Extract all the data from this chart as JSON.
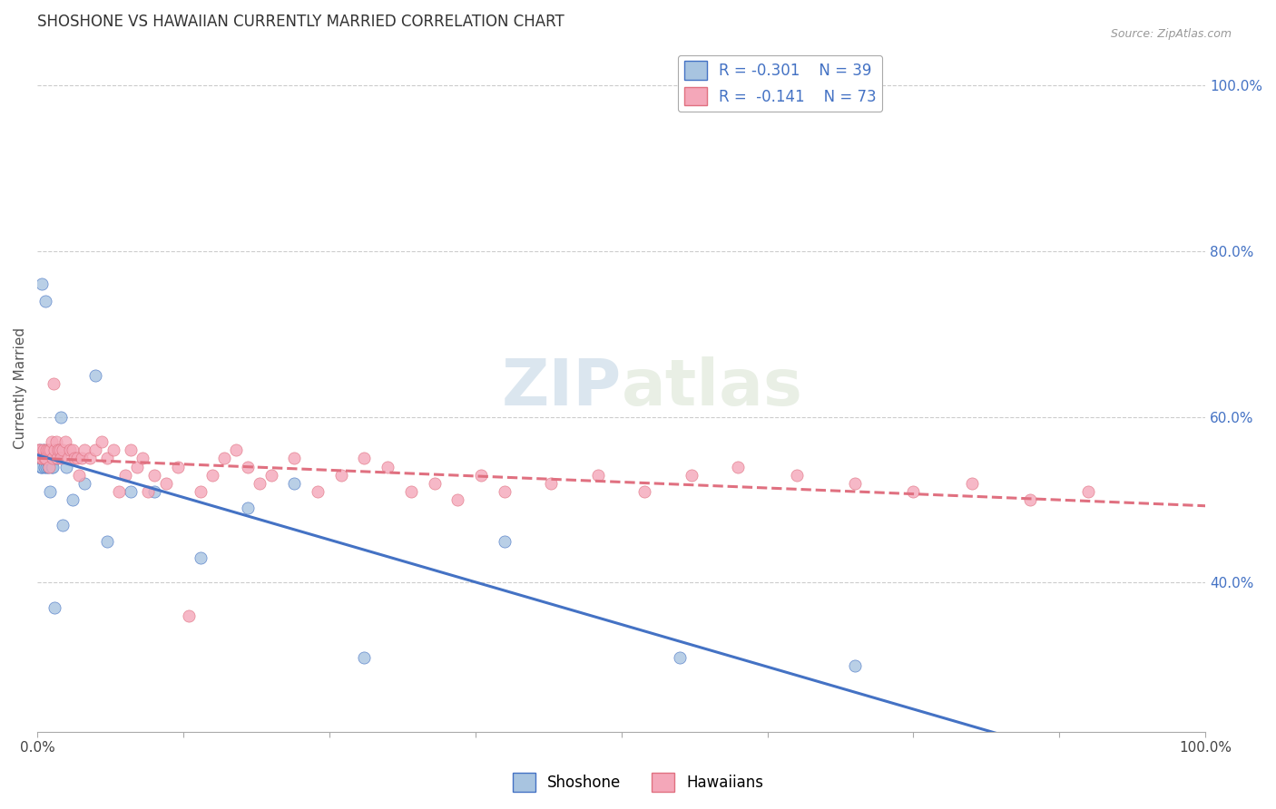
{
  "title": "SHOSHONE VS HAWAIIAN CURRENTLY MARRIED CORRELATION CHART",
  "source": "Source: ZipAtlas.com",
  "ylabel": "Currently Married",
  "legend_label1": "Shoshone",
  "legend_label2": "Hawaiians",
  "r1": -0.301,
  "n1": 39,
  "r2": -0.141,
  "n2": 73,
  "color1": "#a8c4e0",
  "color2": "#f4a7b9",
  "line_color1": "#4472c4",
  "line_color2": "#e07080",
  "watermark": "ZIPatlas",
  "xlim": [
    0.0,
    1.0
  ],
  "ylim": [
    0.22,
    1.05
  ],
  "right_yticks": [
    0.4,
    0.6,
    0.8,
    1.0
  ],
  "right_ytick_labels": [
    "40.0%",
    "60.0%",
    "80.0%",
    "100.0%"
  ],
  "grid_yticks": [
    0.4,
    0.6,
    0.8,
    1.0
  ],
  "background_color": "#ffffff",
  "grid_color": "#cccccc",
  "shoshone_x": [
    0.001,
    0.002,
    0.003,
    0.003,
    0.004,
    0.004,
    0.005,
    0.005,
    0.006,
    0.006,
    0.007,
    0.007,
    0.008,
    0.008,
    0.009,
    0.009,
    0.01,
    0.011,
    0.012,
    0.013,
    0.015,
    0.016,
    0.018,
    0.02,
    0.022,
    0.025,
    0.03,
    0.04,
    0.05,
    0.06,
    0.08,
    0.1,
    0.14,
    0.18,
    0.22,
    0.28,
    0.4,
    0.55,
    0.7
  ],
  "shoshone_y": [
    0.55,
    0.56,
    0.54,
    0.55,
    0.76,
    0.54,
    0.56,
    0.55,
    0.55,
    0.54,
    0.74,
    0.55,
    0.55,
    0.54,
    0.55,
    0.54,
    0.55,
    0.51,
    0.54,
    0.54,
    0.37,
    0.55,
    0.56,
    0.6,
    0.47,
    0.54,
    0.5,
    0.52,
    0.65,
    0.45,
    0.51,
    0.51,
    0.43,
    0.49,
    0.52,
    0.31,
    0.45,
    0.31,
    0.3
  ],
  "hawaiians_x": [
    0.001,
    0.002,
    0.003,
    0.004,
    0.005,
    0.006,
    0.007,
    0.008,
    0.009,
    0.01,
    0.011,
    0.012,
    0.013,
    0.014,
    0.015,
    0.016,
    0.017,
    0.018,
    0.019,
    0.02,
    0.022,
    0.024,
    0.026,
    0.028,
    0.03,
    0.032,
    0.034,
    0.036,
    0.038,
    0.04,
    0.045,
    0.05,
    0.055,
    0.06,
    0.065,
    0.07,
    0.075,
    0.08,
    0.085,
    0.09,
    0.095,
    0.1,
    0.11,
    0.12,
    0.13,
    0.14,
    0.15,
    0.16,
    0.17,
    0.18,
    0.19,
    0.2,
    0.22,
    0.24,
    0.26,
    0.28,
    0.3,
    0.32,
    0.34,
    0.36,
    0.38,
    0.4,
    0.44,
    0.48,
    0.52,
    0.56,
    0.6,
    0.65,
    0.7,
    0.75,
    0.8,
    0.85,
    0.9
  ],
  "hawaiians_y": [
    0.56,
    0.56,
    0.55,
    0.55,
    0.56,
    0.55,
    0.55,
    0.56,
    0.56,
    0.54,
    0.56,
    0.57,
    0.55,
    0.64,
    0.56,
    0.57,
    0.55,
    0.56,
    0.56,
    0.55,
    0.56,
    0.57,
    0.55,
    0.56,
    0.56,
    0.55,
    0.55,
    0.53,
    0.55,
    0.56,
    0.55,
    0.56,
    0.57,
    0.55,
    0.56,
    0.51,
    0.53,
    0.56,
    0.54,
    0.55,
    0.51,
    0.53,
    0.52,
    0.54,
    0.36,
    0.51,
    0.53,
    0.55,
    0.56,
    0.54,
    0.52,
    0.53,
    0.55,
    0.51,
    0.53,
    0.55,
    0.54,
    0.51,
    0.52,
    0.5,
    0.53,
    0.51,
    0.52,
    0.53,
    0.51,
    0.53,
    0.54,
    0.53,
    0.52,
    0.51,
    0.52,
    0.5,
    0.51
  ]
}
